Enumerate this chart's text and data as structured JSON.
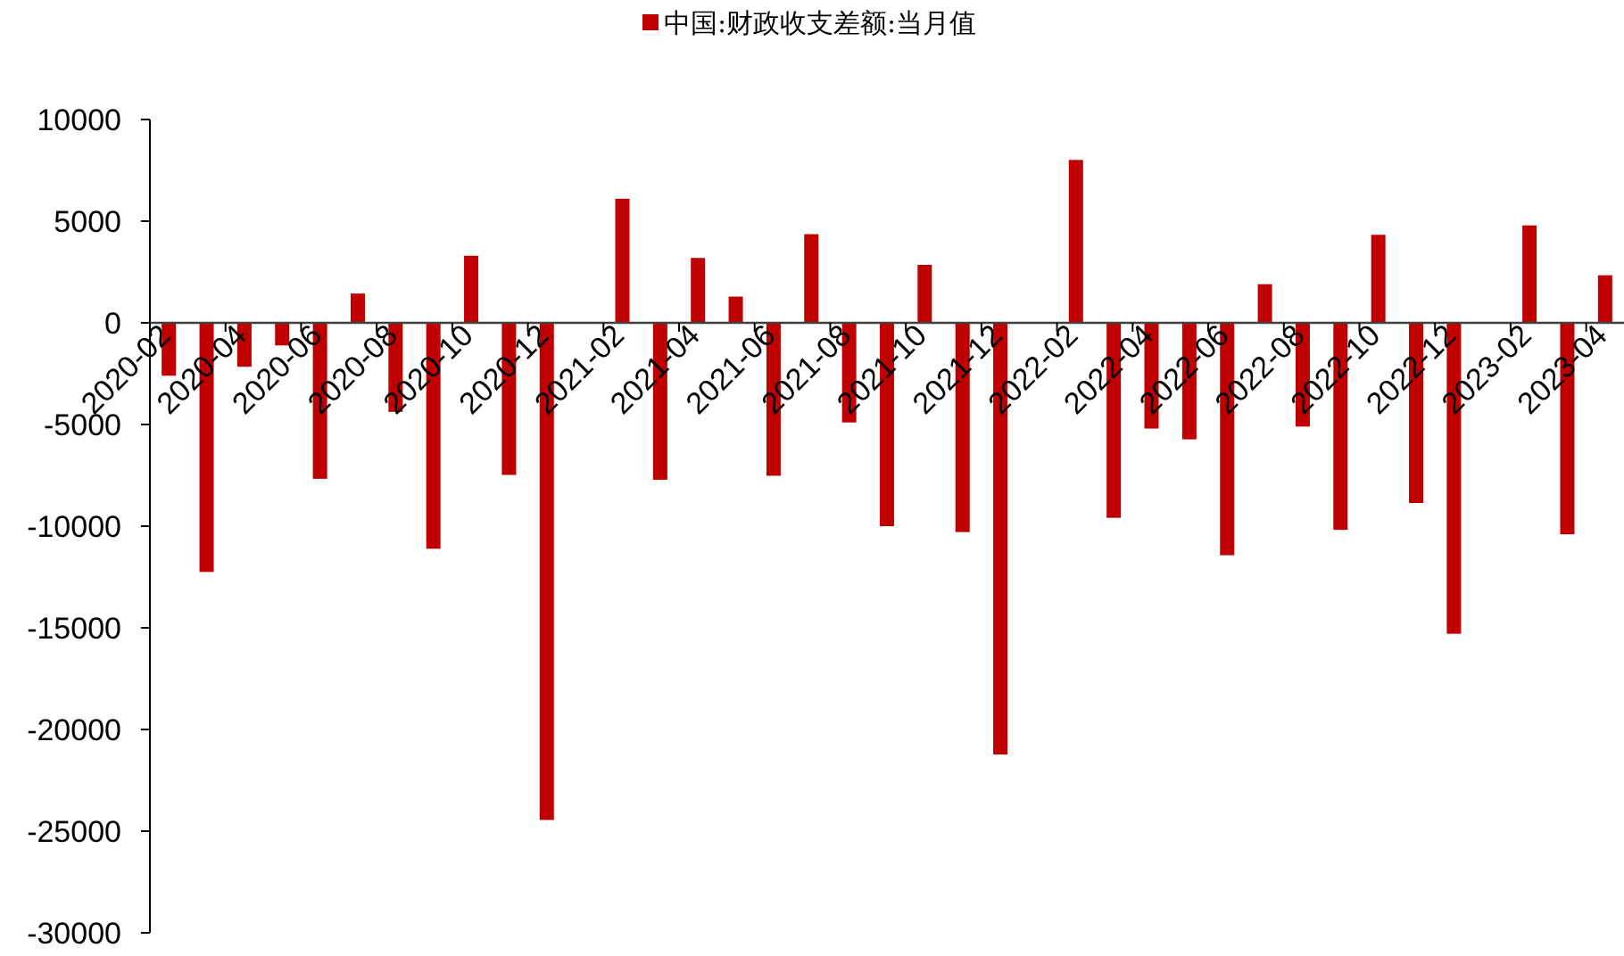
{
  "chart_data": {
    "type": "bar",
    "categories": [
      "2020-02",
      null,
      "2020-04",
      null,
      "2020-06",
      null,
      "2020-08",
      null,
      "2020-10",
      null,
      "2020-12",
      null,
      "2021-02",
      null,
      "2021-04",
      null,
      "2021-06",
      null,
      "2021-08",
      null,
      "2021-10",
      null,
      "2021-12",
      null,
      "2022-02",
      null,
      "2022-04",
      null,
      "2022-06",
      null,
      "2022-08",
      null,
      "2022-10",
      null,
      "2022-12",
      null,
      "2023-02",
      null,
      "2023-04"
    ],
    "series": [
      {
        "name": "中国:财政收支差额:当月值",
        "color": "#c00000",
        "values": [
          -2600,
          -12250,
          -2160,
          -1110,
          -7670,
          1440,
          -4380,
          -11110,
          3300,
          -7480,
          -24450,
          null,
          6100,
          -7720,
          3190,
          1290,
          -7520,
          4360,
          -4900,
          -10000,
          2850,
          -10290,
          -21230,
          null,
          8010,
          -9590,
          -5200,
          -5730,
          -11430,
          1900,
          -5100,
          -10180,
          4330,
          -8860,
          -15290,
          null,
          4790,
          -10400,
          2340
        ]
      }
    ],
    "ylim": [
      -30000,
      10000
    ],
    "yticks": [
      -30000,
      -25000,
      -20000,
      -15000,
      -10000,
      -5000,
      0,
      5000,
      10000
    ],
    "legend": "top"
  }
}
